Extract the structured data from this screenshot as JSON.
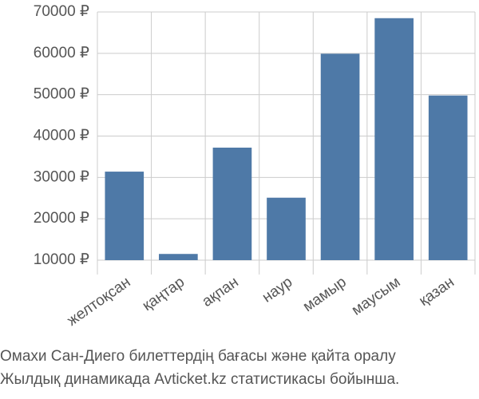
{
  "chart_data": {
    "type": "bar",
    "categories": [
      "желтоқсан",
      "қаңтар",
      "ақпан",
      "наур",
      "мамыр",
      "маусым",
      "қазан"
    ],
    "values": [
      31400,
      11500,
      37200,
      25100,
      59900,
      68500,
      49800
    ],
    "color": "#4e79a7",
    "ylim": [
      10000,
      70000
    ],
    "yticks": [
      {
        "value": 10000,
        "label": "10000 ₽"
      },
      {
        "value": 20000,
        "label": "20000 ₽"
      },
      {
        "value": 30000,
        "label": "30000 ₽"
      },
      {
        "value": 40000,
        "label": "40000 ₽"
      },
      {
        "value": 50000,
        "label": "50000 ₽"
      },
      {
        "value": 60000,
        "label": "60000 ₽"
      },
      {
        "value": 70000,
        "label": "70000 ₽"
      }
    ],
    "grid": true,
    "caption": [
      "Омахи Сан-Диего билеттердің бағасы және қайта оралу",
      "Жылдық динамикада Avticket.kz статистикасы бойынша."
    ]
  }
}
